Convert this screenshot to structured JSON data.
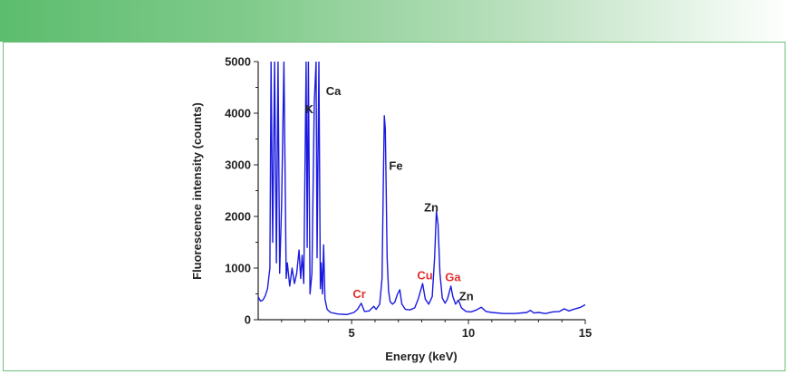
{
  "colors": {
    "header_start": "#5cbd6e",
    "frame_border": "#6cc07a",
    "spectrum_line": "#1a1adf",
    "label_black": "#222222",
    "label_red": "#e03030"
  },
  "chart_data": {
    "type": "line",
    "title": "",
    "xlabel": "Energy (keV)",
    "ylabel": "Fluorescence intensity (counts)",
    "xlim": [
      1,
      15
    ],
    "ylim": [
      0,
      5000
    ],
    "x_ticks": [
      5,
      10,
      15
    ],
    "y_ticks": [
      0,
      1000,
      2000,
      3000,
      4000,
      5000
    ],
    "grid": false,
    "annotations": [
      {
        "text": "K",
        "x": 3.0,
        "y": 4000,
        "color": "black"
      },
      {
        "text": "Ca",
        "x": 3.9,
        "y": 4350,
        "color": "black"
      },
      {
        "text": "Fe",
        "x": 6.6,
        "y": 2900,
        "color": "black"
      },
      {
        "text": "Zn",
        "x": 8.1,
        "y": 2100,
        "color": "black"
      },
      {
        "text": "Cr",
        "x": 5.05,
        "y": 420,
        "color": "red"
      },
      {
        "text": "Cu",
        "x": 7.8,
        "y": 780,
        "color": "red"
      },
      {
        "text": "Ga",
        "x": 9.0,
        "y": 750,
        "color": "red"
      },
      {
        "text": "Zn",
        "x": 9.6,
        "y": 380,
        "color": "black"
      }
    ],
    "series": [
      {
        "values": [
          [
            1.0,
            440
          ],
          [
            1.1,
            360
          ],
          [
            1.2,
            380
          ],
          [
            1.3,
            460
          ],
          [
            1.4,
            600
          ],
          [
            1.5,
            1000
          ],
          [
            1.55,
            5000
          ],
          [
            1.62,
            1500
          ],
          [
            1.7,
            5000
          ],
          [
            1.78,
            1100
          ],
          [
            1.85,
            5000
          ],
          [
            1.92,
            900
          ],
          [
            2.0,
            2200
          ],
          [
            2.1,
            5000
          ],
          [
            2.2,
            800
          ],
          [
            2.25,
            1100
          ],
          [
            2.35,
            650
          ],
          [
            2.45,
            1000
          ],
          [
            2.55,
            700
          ],
          [
            2.65,
            900
          ],
          [
            2.75,
            1350
          ],
          [
            2.82,
            800
          ],
          [
            2.88,
            1250
          ],
          [
            2.95,
            700
          ],
          [
            3.05,
            5000
          ],
          [
            3.1,
            1400
          ],
          [
            3.15,
            5000
          ],
          [
            3.22,
            500
          ],
          [
            3.3,
            900
          ],
          [
            3.4,
            4200
          ],
          [
            3.48,
            5000
          ],
          [
            3.52,
            1200
          ],
          [
            3.6,
            5000
          ],
          [
            3.66,
            600
          ],
          [
            3.7,
            1100
          ],
          [
            3.75,
            500
          ],
          [
            3.8,
            1450
          ],
          [
            3.86,
            400
          ],
          [
            3.95,
            200
          ],
          [
            4.1,
            140
          ],
          [
            4.4,
            110
          ],
          [
            4.8,
            100
          ],
          [
            5.1,
            140
          ],
          [
            5.25,
            200
          ],
          [
            5.41,
            320
          ],
          [
            5.55,
            160
          ],
          [
            5.75,
            170
          ],
          [
            5.95,
            260
          ],
          [
            6.05,
            200
          ],
          [
            6.2,
            300
          ],
          [
            6.3,
            800
          ],
          [
            6.35,
            2500
          ],
          [
            6.4,
            3950
          ],
          [
            6.44,
            3700
          ],
          [
            6.48,
            2500
          ],
          [
            6.52,
            1200
          ],
          [
            6.58,
            550
          ],
          [
            6.65,
            350
          ],
          [
            6.75,
            300
          ],
          [
            6.85,
            340
          ],
          [
            6.95,
            480
          ],
          [
            7.06,
            580
          ],
          [
            7.15,
            300
          ],
          [
            7.3,
            200
          ],
          [
            7.5,
            190
          ],
          [
            7.7,
            230
          ],
          [
            7.85,
            400
          ],
          [
            8.04,
            700
          ],
          [
            8.15,
            400
          ],
          [
            8.3,
            300
          ],
          [
            8.45,
            450
          ],
          [
            8.55,
            1200
          ],
          [
            8.63,
            2100
          ],
          [
            8.7,
            1850
          ],
          [
            8.78,
            900
          ],
          [
            8.88,
            420
          ],
          [
            9.0,
            320
          ],
          [
            9.1,
            400
          ],
          [
            9.25,
            650
          ],
          [
            9.33,
            450
          ],
          [
            9.45,
            300
          ],
          [
            9.57,
            380
          ],
          [
            9.7,
            230
          ],
          [
            9.9,
            160
          ],
          [
            10.1,
            150
          ],
          [
            10.3,
            180
          ],
          [
            10.55,
            240
          ],
          [
            10.75,
            160
          ],
          [
            11.0,
            140
          ],
          [
            11.5,
            120
          ],
          [
            12.0,
            120
          ],
          [
            12.5,
            140
          ],
          [
            12.65,
            180
          ],
          [
            12.8,
            130
          ],
          [
            13.0,
            140
          ],
          [
            13.3,
            120
          ],
          [
            13.6,
            150
          ],
          [
            13.9,
            160
          ],
          [
            14.1,
            210
          ],
          [
            14.3,
            170
          ],
          [
            14.5,
            200
          ],
          [
            14.8,
            240
          ],
          [
            15.0,
            290
          ]
        ]
      }
    ]
  }
}
